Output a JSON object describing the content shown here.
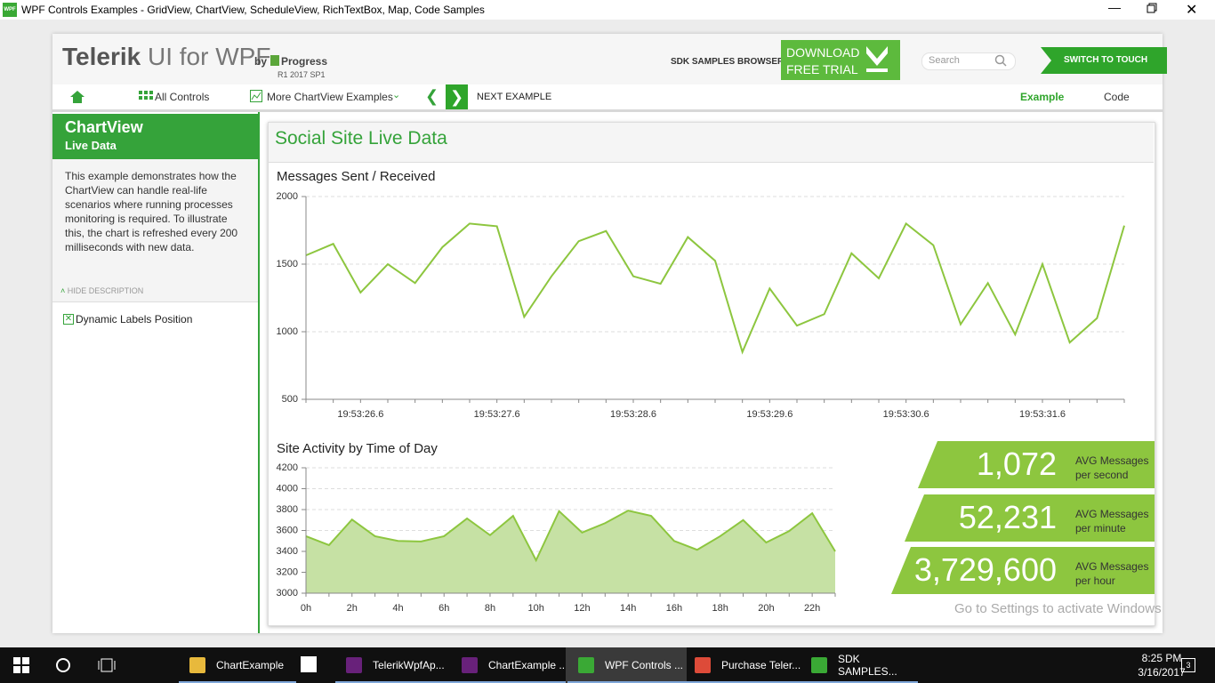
{
  "window": {
    "icon": "WPF",
    "title": "WPF Controls Examples - GridView, ChartView, ScheduleView, RichTextBox, Map, Code Samples"
  },
  "header": {
    "brand": "Telerik",
    "product": "UI for WPF",
    "by": "by",
    "progress": "Progress",
    "version": "R1 2017 SP1",
    "sdk_browser": "SDK SAMPLES BROWSER",
    "download": [
      "DOWNLOAD",
      "FREE TRIAL"
    ],
    "search_placeholder": "Search",
    "switch_touch": "SWITCH TO TOUCH"
  },
  "nav": {
    "all_controls": "All Controls",
    "more_examples": "More ChartView Examples",
    "next_example": "NEXT EXAMPLE",
    "tabs": [
      "Example",
      "Code"
    ]
  },
  "sidebar": {
    "title": "ChartView",
    "subtitle": "Live Data",
    "description": "This example demonstrates how the ChartView can handle real-life scenarios where running processes monitoring is required. To illustrate this, the chart is refreshed every 200 milliseconds with new data.",
    "hide_description": "HIDE DESCRIPTION",
    "option": "Dynamic Labels Position"
  },
  "content": {
    "title": "Social Site Live Data",
    "stats": [
      {
        "value": "1,072",
        "label": [
          "AVG Messages",
          "per second"
        ]
      },
      {
        "value": "52,231",
        "label": [
          "AVG Messages",
          "per minute"
        ]
      },
      {
        "value": "3,729,600",
        "label": [
          "AVG Messages",
          "per hour"
        ]
      }
    ]
  },
  "chart_data": [
    {
      "type": "line",
      "title": "Messages Sent / Received",
      "color": "#8dc63f",
      "categories": [
        null,
        null,
        "19:53:26.6",
        null,
        null,
        null,
        null,
        "19:53:27.6",
        null,
        null,
        null,
        null,
        "19:53:28.6",
        null,
        null,
        null,
        null,
        "19:53:29.6",
        null,
        null,
        null,
        null,
        "19:53:30.6",
        null,
        null,
        null,
        null,
        "19:53:31.6",
        null,
        null,
        null
      ],
      "values": [
        1565,
        1650,
        1290,
        1500,
        1360,
        1625,
        1800,
        1780,
        1110,
        1410,
        1670,
        1745,
        1410,
        1355,
        1700,
        1525,
        850,
        1320,
        1045,
        1130,
        1580,
        1395,
        1800,
        1640,
        1055,
        1360,
        980,
        1500,
        920,
        1100,
        1785
      ],
      "ylim": [
        500,
        2000
      ],
      "yticks": [
        500,
        1000,
        1500,
        2000
      ],
      "grid": true
    },
    {
      "type": "area",
      "title": "Site Activity by Time of Day",
      "color": "#8dc63f",
      "fill": "#c6e1a4",
      "categories": [
        "0h",
        null,
        "2h",
        null,
        "4h",
        null,
        "6h",
        null,
        "8h",
        null,
        "10h",
        null,
        "12h",
        null,
        "14h",
        null,
        "16h",
        null,
        "18h",
        null,
        "20h",
        null,
        "22h",
        null
      ],
      "values": [
        3545,
        3460,
        3705,
        3545,
        3500,
        3495,
        3545,
        3715,
        3555,
        3740,
        3315,
        3785,
        3580,
        3670,
        3790,
        3740,
        3500,
        3415,
        3545,
        3700,
        3485,
        3595,
        3765,
        3400
      ],
      "ylim": [
        3000,
        4200
      ],
      "yticks": [
        3000,
        3200,
        3400,
        3600,
        3800,
        4000,
        4200
      ],
      "grid": true
    }
  ],
  "watermark": "Go to Settings to activate Windows",
  "taskbar": {
    "items": [
      "ChartExample",
      "TelerikWpfAp...",
      "ChartExample ...",
      "WPF Controls ...",
      "Purchase Teler...",
      "SDK SAMPLES..."
    ],
    "time": "8:25 PM",
    "date": "3/16/2017",
    "notifications": "3"
  }
}
